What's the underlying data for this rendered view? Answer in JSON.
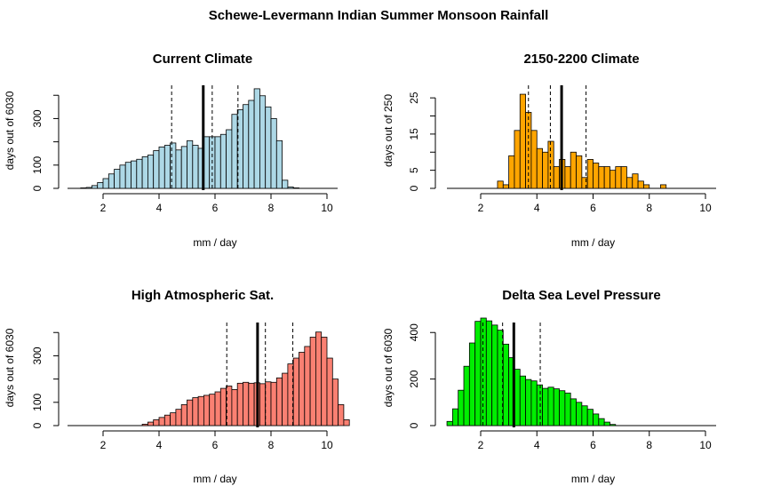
{
  "figure": {
    "title": "Schewe-Levermann Indian Summer Monsoon Rainfall"
  },
  "chart_data": [
    {
      "type": "bar",
      "title": "Current Climate",
      "xlabel": "mm / day",
      "ylabel": "days out of 6030",
      "xlim": [
        0.8,
        10.4
      ],
      "ylim": [
        0,
        420
      ],
      "x_ticks": [
        2,
        4,
        6,
        8,
        10
      ],
      "y_ticks": [
        0,
        100,
        300
      ],
      "bin_start": 1.2,
      "bin_width": 0.2,
      "values": [
        2,
        4,
        12,
        25,
        42,
        62,
        82,
        100,
        112,
        118,
        125,
        136,
        143,
        162,
        178,
        185,
        195,
        165,
        180,
        205,
        185,
        172,
        222,
        222,
        222,
        232,
        252,
        318,
        338,
        360,
        378,
        428,
        398,
        350,
        300,
        205,
        35,
        6,
        2
      ],
      "bar_color": "#ADD8E6",
      "mean": 5.58,
      "dashed_lines": [
        4.45,
        5.9,
        6.82
      ]
    },
    {
      "type": "bar",
      "title": "2150-2200 Climate",
      "xlabel": "mm / day",
      "ylabel": "days out of 250",
      "xlim": [
        0.8,
        10.4
      ],
      "ylim": [
        0,
        27
      ],
      "x_ticks": [
        2,
        4,
        6,
        8,
        10
      ],
      "y_ticks": [
        0,
        5,
        15,
        25
      ],
      "bin_start": 2.6,
      "bin_width": 0.2,
      "values": [
        2,
        1,
        9,
        16,
        26,
        21,
        16,
        11,
        10,
        13,
        6,
        8,
        6,
        10,
        9,
        3,
        8,
        7,
        6,
        6,
        5,
        6,
        6,
        3,
        4,
        2,
        1,
        0,
        0,
        1
      ],
      "bar_color": "#FFA500",
      "mean": 4.88,
      "dashed_lines": [
        3.7,
        4.48,
        5.75
      ]
    },
    {
      "type": "bar",
      "title": "High Atmospheric Sat.",
      "xlabel": "mm / day",
      "ylabel": "days out of 6030",
      "xlim": [
        0.8,
        10.4
      ],
      "ylim": [
        0,
        420
      ],
      "x_ticks": [
        2,
        4,
        6,
        8,
        10
      ],
      "y_ticks": [
        0,
        100,
        300
      ],
      "bin_start": 3.4,
      "bin_width": 0.2,
      "values": [
        6,
        15,
        25,
        35,
        45,
        55,
        70,
        90,
        110,
        120,
        125,
        130,
        135,
        145,
        160,
        170,
        155,
        182,
        186,
        182,
        184,
        180,
        188,
        186,
        205,
        225,
        265,
        290,
        315,
        340,
        380,
        402,
        380,
        290,
        200,
        90,
        25
      ],
      "bar_color": "#FA8072",
      "mean": 7.52,
      "dashed_lines": [
        6.42,
        7.8,
        8.78
      ]
    },
    {
      "type": "bar",
      "title": "Delta Sea Level Pressure",
      "xlabel": "mm / day",
      "ylabel": "days out of 6030",
      "xlim": [
        0.8,
        10.4
      ],
      "ylim": [
        0,
        420
      ],
      "x_ticks": [
        2,
        4,
        6,
        8,
        10
      ],
      "y_ticks": [
        0,
        200,
        400
      ],
      "bin_start": 0.8,
      "bin_width": 0.2,
      "values": [
        18,
        72,
        152,
        255,
        355,
        448,
        462,
        450,
        432,
        410,
        350,
        292,
        242,
        213,
        198,
        192,
        175,
        160,
        165,
        158,
        150,
        140,
        115,
        100,
        85,
        70,
        50,
        30,
        15,
        5
      ],
      "bar_color": "#00EE00",
      "mean": 3.18,
      "dashed_lines": [
        2.08,
        2.78,
        4.12
      ]
    }
  ]
}
